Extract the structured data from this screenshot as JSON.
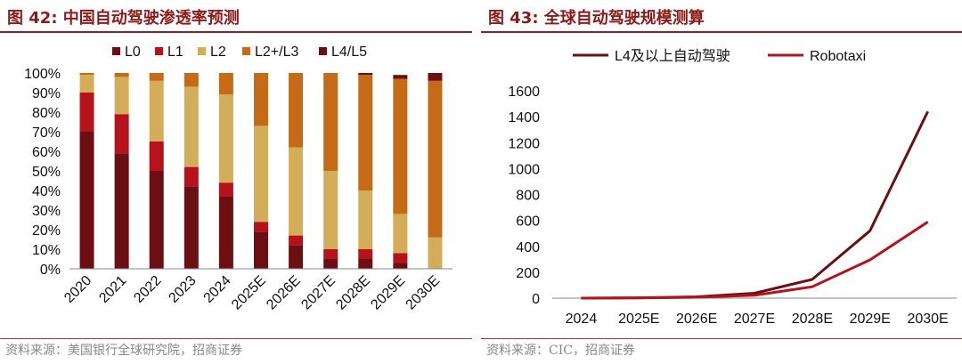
{
  "left": {
    "title": "图 42:  中国自动驾驶渗透率预测",
    "source": "资料来源：美国银行全球研究院，招商证券"
  },
  "right": {
    "title": "图 43:  全球自动驾驶规模测算",
    "source": "资料来源：CIC，招商证券"
  },
  "colors": {
    "L0": "#6b0f12",
    "L1": "#b5121b",
    "L2": "#d4ad5a",
    "L2+/L3": "#c56a16",
    "L4/L5": "#6b0f12",
    "line_L4": "#6b0f12",
    "line_robotaxi": "#b5121b"
  },
  "chart_data": [
    {
      "type": "bar",
      "stacked": true,
      "title": "中国自动驾驶渗透率预测",
      "categories": [
        "2020",
        "2021",
        "2022",
        "2023",
        "2024",
        "2025E",
        "2026E",
        "2027E",
        "2028E",
        "2029E",
        "2030E"
      ],
      "series": [
        {
          "name": "L0",
          "values": [
            70,
            59,
            50,
            42,
            37,
            19,
            12,
            5,
            5,
            3,
            0
          ]
        },
        {
          "name": "L1",
          "values": [
            20,
            20,
            15,
            10,
            7,
            5,
            5,
            5,
            5,
            5,
            0
          ]
        },
        {
          "name": "L2",
          "values": [
            9,
            19,
            31,
            41,
            45,
            49,
            45,
            40,
            30,
            20,
            16
          ]
        },
        {
          "name": "L2+/L3",
          "values": [
            1,
            2,
            4,
            7,
            11,
            27,
            38,
            50,
            59,
            69,
            80
          ]
        },
        {
          "name": "L4/L5",
          "values": [
            0,
            0,
            0,
            0,
            0,
            0,
            0,
            0,
            1,
            2,
            4
          ]
        }
      ],
      "yticks": [
        "0%",
        "10%",
        "20%",
        "30%",
        "40%",
        "50%",
        "60%",
        "70%",
        "80%",
        "90%",
        "100%"
      ],
      "ylim": [
        0,
        100
      ],
      "legend": "top"
    },
    {
      "type": "line",
      "title": "全球自动驾驶规模测算",
      "categories": [
        "2024",
        "2025E",
        "2026E",
        "2027E",
        "2028E",
        "2029E",
        "2030E"
      ],
      "series": [
        {
          "name": "L4及以上自动驾驶",
          "values": [
            0,
            3,
            10,
            38,
            145,
            520,
            1440
          ]
        },
        {
          "name": "Robotaxi",
          "values": [
            0,
            2,
            7,
            22,
            88,
            295,
            588
          ]
        }
      ],
      "yticks": [
        "0",
        "200",
        "400",
        "600",
        "800",
        "1000",
        "1200",
        "1400",
        "1600"
      ],
      "ylim": [
        0,
        1600
      ],
      "legend": "top"
    }
  ]
}
